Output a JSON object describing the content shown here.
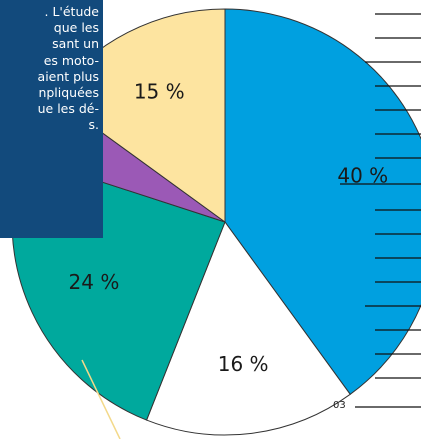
{
  "chart_data": {
    "type": "pie",
    "values": [
      40,
      16,
      24,
      5,
      15
    ],
    "value_labels": [
      "40 %",
      "16 %",
      "24 %",
      null,
      "15 %"
    ],
    "colors": [
      "#00a0e0",
      "#ffffff",
      "#00a99d",
      "#9b59b6",
      "#fde4a0"
    ]
  },
  "text_box": {
    "lines": [
      ". L'étude",
      "que les",
      "sant un",
      "es moto-",
      "aient plus",
      "npliquées",
      "ue les dé-",
      "s."
    ]
  },
  "page_number": "03"
}
